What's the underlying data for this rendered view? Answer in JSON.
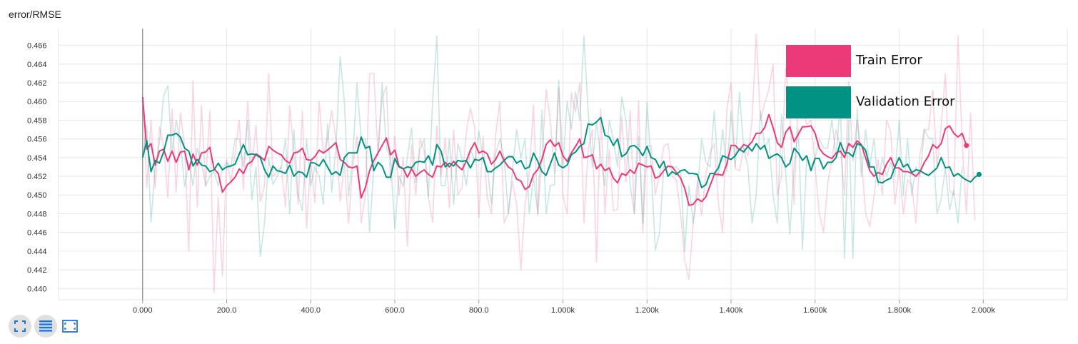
{
  "chart_title": "error/RMSE",
  "toolbar": {
    "buttons": [
      {
        "name": "fullscreen-icon",
        "label": "Toggle expanded view"
      },
      {
        "name": "log-scale-icon",
        "label": "Toggle y-axis log scale"
      },
      {
        "name": "fit-domain-icon",
        "label": "Fit domain to data"
      }
    ]
  },
  "colors": {
    "train": "#ec3a78",
    "validation": "#009384",
    "grid": "#e6e6e6",
    "axis": "#999999"
  },
  "chart_data": {
    "type": "line",
    "title": "error/RMSE",
    "xlabel": "",
    "ylabel": "",
    "xlim": [
      -200,
      2200
    ],
    "ylim": [
      0.4388,
      0.4678
    ],
    "x_ticks": [
      0,
      200,
      400,
      600,
      800,
      1000,
      1200,
      1400,
      1600,
      1800,
      2000
    ],
    "x_tick_labels": [
      "0.000",
      "200.0",
      "400.0",
      "600.0",
      "800.0",
      "1.000k",
      "1.200k",
      "1.400k",
      "1.600k",
      "1.800k",
      "2.000k"
    ],
    "y_ticks": [
      0.44,
      0.442,
      0.444,
      0.446,
      0.448,
      0.45,
      0.452,
      0.454,
      0.456,
      0.458,
      0.46,
      0.462,
      0.464,
      0.466
    ],
    "y_tick_labels": [
      "0.440",
      "0.442",
      "0.444",
      "0.446",
      "0.448",
      "0.450",
      "0.452",
      "0.454",
      "0.456",
      "0.458",
      "0.460",
      "0.462",
      "0.464",
      "0.466"
    ],
    "grid": true,
    "legend_position": "top-right",
    "x": [
      0,
      10,
      20,
      30,
      40,
      50,
      60,
      70,
      80,
      90,
      100,
      110,
      120,
      130,
      140,
      150,
      160,
      170,
      180,
      190,
      200,
      210,
      220,
      230,
      240,
      250,
      260,
      270,
      280,
      290,
      300,
      310,
      320,
      330,
      340,
      350,
      360,
      370,
      380,
      390,
      400,
      410,
      420,
      430,
      440,
      450,
      460,
      470,
      480,
      490,
      500,
      510,
      520,
      530,
      540,
      550,
      560,
      570,
      580,
      590,
      600,
      610,
      620,
      630,
      640,
      650,
      660,
      670,
      680,
      690,
      700,
      710,
      720,
      730,
      740,
      750,
      760,
      770,
      780,
      790,
      800,
      810,
      820,
      830,
      840,
      850,
      860,
      870,
      880,
      890,
      900,
      910,
      920,
      930,
      940,
      950,
      960,
      970,
      980,
      990,
      1000,
      1010,
      1020,
      1030,
      1040,
      1050,
      1060,
      1070,
      1080,
      1090,
      1100,
      1110,
      1120,
      1130,
      1140,
      1150,
      1160,
      1170,
      1180,
      1190,
      1200,
      1210,
      1220,
      1230,
      1240,
      1250,
      1260,
      1270,
      1280,
      1290,
      1300,
      1310,
      1320,
      1330,
      1340,
      1350,
      1360,
      1370,
      1380,
      1390,
      1400,
      1410,
      1420,
      1430,
      1440,
      1450,
      1460,
      1470,
      1480,
      1490,
      1500,
      1510,
      1520,
      1530,
      1540,
      1550,
      1560,
      1570,
      1580,
      1590,
      1600,
      1610,
      1620,
      1630,
      1640,
      1650,
      1660,
      1670,
      1680,
      1690,
      1700,
      1710,
      1720,
      1730,
      1740,
      1750,
      1760,
      1770,
      1780,
      1790,
      1800,
      1810,
      1820,
      1830,
      1840,
      1850,
      1860,
      1870,
      1880,
      1890,
      1900,
      1910,
      1920,
      1930,
      1940,
      1950,
      1960,
      1970,
      1980,
      1990
    ],
    "series": [
      {
        "name": "Train Error",
        "color": "#ec3a78",
        "smoothed": [
          0.4605,
          0.4549,
          0.4555,
          0.4532,
          0.4547,
          0.4549,
          0.4536,
          0.4547,
          0.4535,
          0.4546,
          0.4547,
          0.4527,
          0.4544,
          0.4532,
          0.4545,
          0.4546,
          0.4551,
          0.4528,
          0.4523,
          0.4503,
          0.451,
          0.4514,
          0.4519,
          0.4528,
          0.4523,
          0.4533,
          0.4536,
          0.4544,
          0.4541,
          0.4537,
          0.4552,
          0.4548,
          0.4545,
          0.4543,
          0.4537,
          0.4534,
          0.4545,
          0.4546,
          0.455,
          0.4538,
          0.4537,
          0.4541,
          0.4548,
          0.4545,
          0.4548,
          0.4552,
          0.4556,
          0.4538,
          0.4535,
          0.453,
          0.4529,
          0.4531,
          0.4497,
          0.4508,
          0.4526,
          0.4537,
          0.4545,
          0.4553,
          0.4561,
          0.4543,
          0.4548,
          0.4531,
          0.4528,
          0.4519,
          0.4528,
          0.452,
          0.4524,
          0.4527,
          0.4522,
          0.4519,
          0.4531,
          0.453,
          0.4535,
          0.453,
          0.4536,
          0.4531,
          0.4527,
          0.4536,
          0.4548,
          0.4556,
          0.4545,
          0.4547,
          0.4544,
          0.4533,
          0.4538,
          0.4547,
          0.4537,
          0.453,
          0.4527,
          0.4517,
          0.4515,
          0.4506,
          0.4509,
          0.4522,
          0.4527,
          0.4538,
          0.4554,
          0.4559,
          0.4552,
          0.4556,
          0.4542,
          0.4536,
          0.4545,
          0.4552,
          0.456,
          0.454,
          0.4541,
          0.4543,
          0.4528,
          0.4533,
          0.4526,
          0.4529,
          0.4518,
          0.4513,
          0.4523,
          0.4521,
          0.4527,
          0.4523,
          0.4534,
          0.4532,
          0.453,
          0.4531,
          0.4518,
          0.452,
          0.4526,
          0.4531,
          0.453,
          0.4524,
          0.4518,
          0.4507,
          0.4489,
          0.449,
          0.4496,
          0.4493,
          0.4498,
          0.451,
          0.4522,
          0.4522,
          0.4521,
          0.4533,
          0.4553,
          0.4553,
          0.4548,
          0.4554,
          0.4552,
          0.4557,
          0.4566,
          0.4566,
          0.4572,
          0.4586,
          0.4572,
          0.4556,
          0.4551,
          0.4567,
          0.4573,
          0.4557,
          0.4565,
          0.4573,
          0.4573,
          0.4574,
          0.4566,
          0.455,
          0.4544,
          0.4541,
          0.4539,
          0.4545,
          0.4547,
          0.454,
          0.4555,
          0.4551,
          0.4558,
          0.4554,
          0.454,
          0.4526,
          0.452,
          0.4524,
          0.4522,
          0.4533,
          0.454,
          0.4529,
          0.4529,
          0.4525,
          0.4525,
          0.4523,
          0.452,
          0.4525,
          0.4535,
          0.4542,
          0.4554,
          0.455,
          0.4555,
          0.4571,
          0.4574,
          0.4566,
          0.4562,
          0.4566,
          0.4553
        ],
        "raw": [
          0.4605,
          0.4508,
          0.458,
          0.4507,
          0.4573,
          0.4552,
          0.4497,
          0.4592,
          0.4503,
          0.4588,
          0.4552,
          0.444,
          0.4622,
          0.4487,
          0.4596,
          0.4509,
          0.459,
          0.4396,
          0.4498,
          0.4413,
          0.4538,
          0.4514,
          0.4545,
          0.458,
          0.4505,
          0.46,
          0.453,
          0.4575,
          0.4493,
          0.451,
          0.463,
          0.452,
          0.4524,
          0.453,
          0.4487,
          0.4595,
          0.4545,
          0.449,
          0.459,
          0.4465,
          0.4537,
          0.4492,
          0.46,
          0.4544,
          0.456,
          0.459,
          0.456,
          0.4493,
          0.4534,
          0.447,
          0.453,
          0.4563,
          0.447,
          0.45,
          0.463,
          0.463,
          0.4543,
          0.4604,
          0.4616,
          0.4515,
          0.4563,
          0.45,
          0.454,
          0.4445,
          0.4554,
          0.45,
          0.456,
          0.4547,
          0.4497,
          0.4471,
          0.4574,
          0.452,
          0.4561,
          0.4486,
          0.457,
          0.45,
          0.4508,
          0.4567,
          0.4593,
          0.4572,
          0.4476,
          0.4563,
          0.4497,
          0.448,
          0.4565,
          0.46,
          0.447,
          0.448,
          0.4515,
          0.449,
          0.442,
          0.449,
          0.4524,
          0.4596,
          0.4478,
          0.454,
          0.4613,
          0.458,
          0.4523,
          0.4615,
          0.45,
          0.448,
          0.4609,
          0.4589,
          0.462,
          0.447,
          0.4548,
          0.457,
          0.4428,
          0.4592,
          0.448,
          0.4549,
          0.4483,
          0.4485,
          0.4584,
          0.4514,
          0.459,
          0.448,
          0.4601,
          0.446,
          0.4552,
          0.4553,
          0.4501,
          0.4522,
          0.4552,
          0.4555,
          0.452,
          0.4516,
          0.448,
          0.443,
          0.441,
          0.4471,
          0.4516,
          0.4478,
          0.4523,
          0.4545,
          0.4555,
          0.4492,
          0.446,
          0.4591,
          0.462,
          0.4528,
          0.4526,
          0.455,
          0.4542,
          0.458,
          0.4672,
          0.458,
          0.4598,
          0.4613,
          0.464,
          0.45,
          0.452,
          0.4636,
          0.459,
          0.449,
          0.4606,
          0.4599,
          0.4575,
          0.458,
          0.453,
          0.448,
          0.446,
          0.4512,
          0.4538,
          0.457,
          0.4551,
          0.45,
          0.4621,
          0.4536,
          0.458,
          0.454,
          0.4481,
          0.4466,
          0.4498,
          0.4538,
          0.45,
          0.458,
          0.4568,
          0.449,
          0.453,
          0.448,
          0.4517,
          0.451,
          0.447,
          0.4545,
          0.457,
          0.457,
          0.4612,
          0.453,
          0.4573,
          0.463,
          0.4505,
          0.45,
          0.467,
          0.4555,
          0.448,
          0.4588,
          0.4473
        ]
      },
      {
        "name": "Validation Error",
        "color": "#009384",
        "smoothed": [
          0.454,
          0.4558,
          0.4525,
          0.4537,
          0.4534,
          0.4546,
          0.4564,
          0.4564,
          0.4566,
          0.4562,
          0.455,
          0.4547,
          0.4531,
          0.4538,
          0.4532,
          0.4531,
          0.4525,
          0.4527,
          0.4534,
          0.4527,
          0.453,
          0.4531,
          0.4533,
          0.4544,
          0.4554,
          0.4543,
          0.4544,
          0.4543,
          0.454,
          0.4527,
          0.4519,
          0.4531,
          0.4526,
          0.4525,
          0.4523,
          0.4532,
          0.452,
          0.4525,
          0.4524,
          0.4519,
          0.4535,
          0.4534,
          0.4531,
          0.4538,
          0.453,
          0.4522,
          0.4525,
          0.4521,
          0.454,
          0.4545,
          0.4545,
          0.4545,
          0.4562,
          0.455,
          0.4552,
          0.4526,
          0.4535,
          0.4531,
          0.4519,
          0.4519,
          0.4539,
          0.453,
          0.4528,
          0.453,
          0.4529,
          0.4535,
          0.4536,
          0.4535,
          0.4542,
          0.4532,
          0.4554,
          0.4547,
          0.453,
          0.4534,
          0.4531,
          0.4537,
          0.4536,
          0.4537,
          0.4529,
          0.4538,
          0.4537,
          0.454,
          0.4525,
          0.4525,
          0.4529,
          0.4532,
          0.4537,
          0.4541,
          0.4541,
          0.4534,
          0.4537,
          0.4528,
          0.453,
          0.4545,
          0.4536,
          0.4525,
          0.4521,
          0.4533,
          0.4545,
          0.4532,
          0.4529,
          0.4532,
          0.4543,
          0.4546,
          0.4552,
          0.4555,
          0.4576,
          0.4575,
          0.4578,
          0.4583,
          0.4564,
          0.4562,
          0.4553,
          0.456,
          0.4541,
          0.4544,
          0.4552,
          0.4553,
          0.4549,
          0.4542,
          0.4552,
          0.454,
          0.4538,
          0.4529,
          0.4536,
          0.452,
          0.4525,
          0.4522,
          0.4526,
          0.4527,
          0.4523,
          0.4523,
          0.4522,
          0.4508,
          0.4511,
          0.4523,
          0.4523,
          0.4529,
          0.4542,
          0.454,
          0.4538,
          0.4542,
          0.4549,
          0.4546,
          0.4552,
          0.4547,
          0.4555,
          0.4549,
          0.4553,
          0.4539,
          0.4542,
          0.4544,
          0.454,
          0.453,
          0.4534,
          0.455,
          0.4545,
          0.4537,
          0.4542,
          0.4526,
          0.4539,
          0.4539,
          0.4528,
          0.4535,
          0.4535,
          0.454,
          0.4556,
          0.4545,
          0.4545,
          0.4541,
          0.4555,
          0.4553,
          0.4548,
          0.453,
          0.453,
          0.4514,
          0.4513,
          0.4516,
          0.4518,
          0.453,
          0.454,
          0.453,
          0.4533,
          0.4524,
          0.4527,
          0.4526,
          0.4523,
          0.4521,
          0.4525,
          0.4529,
          0.454,
          0.4529,
          0.453,
          0.452,
          0.4523,
          0.4519,
          0.4516,
          0.4514,
          0.4519,
          0.4522
        ],
        "raw": [
          0.454,
          0.4575,
          0.4471,
          0.453,
          0.4555,
          0.4606,
          0.4617,
          0.4545,
          0.458,
          0.4556,
          0.4509,
          0.4535,
          0.451,
          0.455,
          0.4535,
          0.451,
          0.452,
          0.4525,
          0.451,
          0.4528,
          0.4535,
          0.453,
          0.456,
          0.456,
          0.453,
          0.458,
          0.4495,
          0.453,
          0.4434,
          0.447,
          0.454,
          0.4511,
          0.452,
          0.453,
          0.456,
          0.448,
          0.457,
          0.45,
          0.4483,
          0.456,
          0.451,
          0.453,
          0.452,
          0.449,
          0.4576,
          0.4503,
          0.455,
          0.4648,
          0.46,
          0.4499,
          0.454,
          0.462,
          0.456,
          0.456,
          0.446,
          0.453,
          0.4545,
          0.462,
          0.455,
          0.454,
          0.4464,
          0.452,
          0.4509,
          0.454,
          0.4572,
          0.4514,
          0.4548,
          0.456,
          0.4498,
          0.46,
          0.467,
          0.451,
          0.451,
          0.456,
          0.449,
          0.4555,
          0.4539,
          0.451,
          0.455,
          0.4535,
          0.4568,
          0.454,
          0.453,
          0.449,
          0.4545,
          0.456,
          0.454,
          0.448,
          0.4527,
          0.457,
          0.454,
          0.456,
          0.448,
          0.452,
          0.448,
          0.4591,
          0.448,
          0.451,
          0.4511,
          0.4623,
          0.453,
          0.46,
          0.457,
          0.461,
          0.458,
          0.467,
          0.459,
          0.453,
          0.4578,
          0.454,
          0.451,
          0.458,
          0.456,
          0.453,
          0.4605,
          0.458,
          0.451,
          0.448,
          0.4563,
          0.447,
          0.4599,
          0.453,
          0.4441,
          0.446,
          0.4531,
          0.453,
          0.453,
          0.453,
          0.4525,
          0.444,
          0.451,
          0.447,
          0.4502,
          0.456,
          0.4535,
          0.453,
          0.459,
          0.452,
          0.457,
          0.4525,
          0.459,
          0.453,
          0.461,
          0.455,
          0.453,
          0.447,
          0.45,
          0.459,
          0.455,
          0.456,
          0.45,
          0.447,
          0.4586,
          0.4525,
          0.4458,
          0.453,
          0.4571,
          0.4442,
          0.454,
          0.453,
          0.454,
          0.456,
          0.455,
          0.455,
          0.458,
          0.454,
          0.46,
          0.4432,
          0.458,
          0.4432,
          0.4593,
          0.452,
          0.457,
          0.453,
          0.456,
          0.451,
          0.454,
          0.452,
          0.4535,
          0.452,
          0.458,
          0.45,
          0.456,
          0.45,
          0.453,
          0.452,
          0.457,
          0.4561,
          0.456,
          0.448,
          0.4496,
          0.453,
          0.4484,
          0.4505,
          0.447,
          0.453
        ]
      }
    ],
    "legend": [
      {
        "label": "Train Error",
        "color": "#ec3a78"
      },
      {
        "label": "Validation Error",
        "color": "#009384"
      }
    ]
  }
}
